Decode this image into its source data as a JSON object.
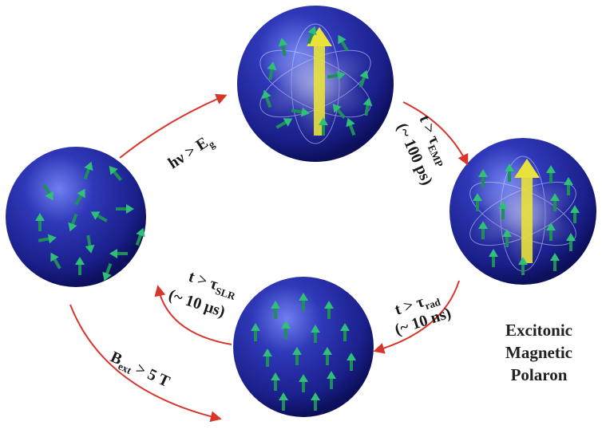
{
  "caption": {
    "line1": "Excitonic",
    "line2": "Magnetic",
    "line3": "Polaron"
  },
  "transitions": {
    "excite": {
      "main": "hν > E",
      "sub": "g"
    },
    "emp": {
      "main": "t > τ",
      "sub": "EMP",
      "note": "(~ 100 ps)"
    },
    "rad": {
      "main": "t > τ",
      "sub": "rad",
      "note": "(~ 10 ns)"
    },
    "slr": {
      "main": "t > τ",
      "sub": "SLR",
      "note": "(~ 10 μs)"
    },
    "field": {
      "main": "B",
      "sub": "ext",
      "tail": " > 5 T"
    }
  },
  "colors": {
    "sphere_light": "#6f7ff0",
    "sphere_mid": "#2f38b8",
    "sphere_dark": "#0c0f5a",
    "spin_arrow": "#1f8f5a",
    "spin_arrow_head": "#2fbf78",
    "giant_moment": "#e8e23a",
    "transition_arrow": "#d9362b"
  },
  "spheres": {
    "random": {
      "state": "random spins",
      "icon": "sphere-random-icon"
    },
    "forming": {
      "state": "forming polaron",
      "icon": "sphere-forming-icon"
    },
    "polaron": {
      "state": "aligned polaron",
      "icon": "sphere-polaron-icon"
    },
    "aligned": {
      "state": "field-aligned spins",
      "icon": "sphere-aligned-icon"
    }
  }
}
